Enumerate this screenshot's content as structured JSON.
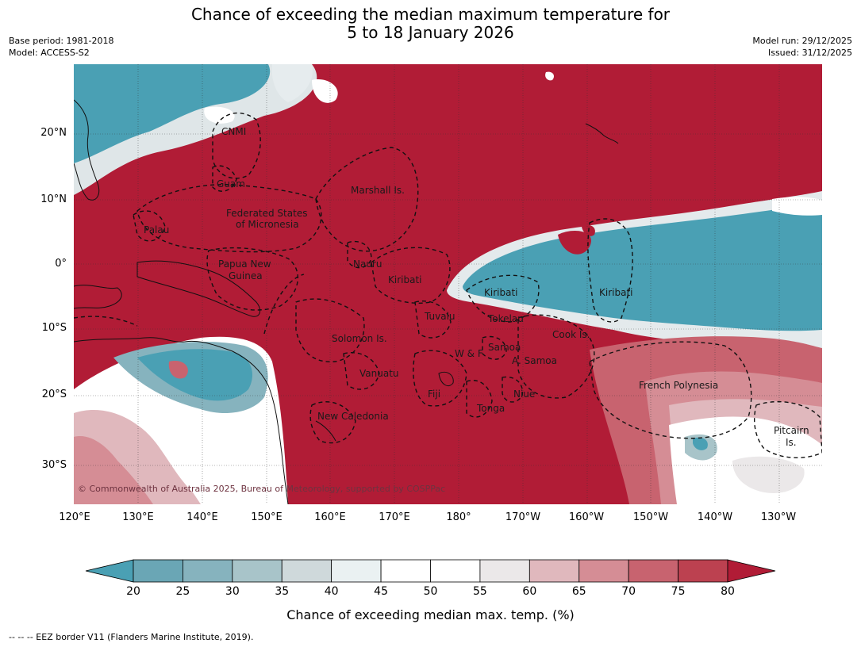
{
  "title_line1": "Chance of exceeding the median maximum temperature for",
  "title_line2": "5 to 18 January 2026",
  "base_period": "Base period: 1981-2018",
  "model": "Model: ACCESS-S2",
  "model_run": "Model run: 29/12/2025",
  "issued": "Issued: 31/12/2025",
  "lat_ticks": [
    "20°N",
    "10°N",
    "0°",
    "10°S",
    "20°S",
    "30°S"
  ],
  "lon_ticks": [
    "120°E",
    "130°E",
    "140°E",
    "150°E",
    "160°E",
    "170°E",
    "180°",
    "170°W",
    "160°W",
    "150°W",
    "140°W",
    "130°W"
  ],
  "regions": {
    "cnmi": "CNMI",
    "guam": "Guam",
    "marshall": "Marshall Is.",
    "fsm1": "Federated States",
    "fsm2": "of Micronesia",
    "palau": "Palau",
    "png1": "Papua New",
    "png2": "Guinea",
    "nauru": "Nauru",
    "kiribati_w": "Kiribati",
    "kiribati_c": "Kiribati",
    "kiribati_e": "Kiribati",
    "tuvalu": "Tuvalu",
    "tokelau": "Tokelau",
    "cook": "Cook Is.",
    "solomon": "Solomon Is.",
    "samoa": "Samoa",
    "wf": "W & F",
    "asamoa": "A. Samoa",
    "vanuatu": "Vanuatu",
    "fiji": "Fiji",
    "niue": "Niue",
    "tonga": "Tonga",
    "frpoly": "French Polynesia",
    "newcal": "New Caledonia",
    "pitcairn1": "Pitcairn",
    "pitcairn2": "Is."
  },
  "copyright": "© Commonwealth of Australia 2025, Bureau of Meteorology, supported by COSPPac",
  "colorbar": {
    "label": "Chance of exceeding median max. temp. (%)",
    "ticks": [
      "20",
      "25",
      "30",
      "35",
      "40",
      "45",
      "50",
      "55",
      "60",
      "65",
      "70",
      "75",
      "80"
    ],
    "colors": [
      "#4aa0b4",
      "#6aa6b5",
      "#86b3be",
      "#a8c4c9",
      "#cfd9db",
      "#eaf1f2",
      "#ffffff",
      "#ffffff",
      "#ebe8e9",
      "#e0b8bd",
      "#d58d95",
      "#c8636f",
      "#bc4150",
      "#b11c36"
    ]
  },
  "footer": "-- -- -- EEZ border V11 (Flanders Marine Institute, 2019)."
}
